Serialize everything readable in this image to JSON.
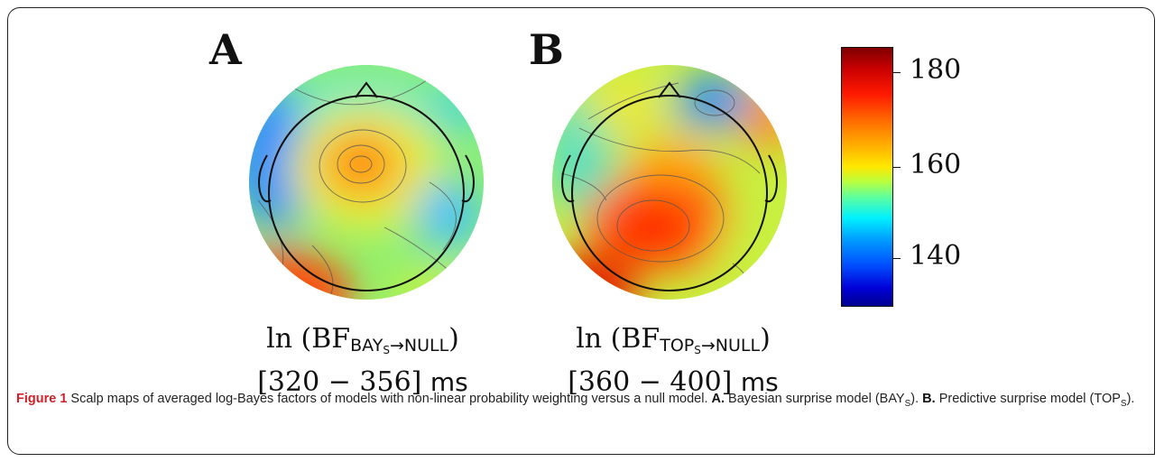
{
  "figure": {
    "panels": [
      {
        "letter": "A",
        "formula_prefix": "ln (BF",
        "subscript": "BAY",
        "subsub": "S",
        "arrow_null": "→NULL",
        "formula_suffix": ")",
        "window": "[320 − 356]",
        "unit": "ms"
      },
      {
        "letter": "B",
        "formula_prefix": "ln (BF",
        "subscript": "TOP",
        "subsub": "S",
        "arrow_null": "→NULL",
        "formula_suffix": ")",
        "window": "[360 − 400]",
        "unit": "ms"
      }
    ],
    "colorbar": {
      "ticks": [
        "180",
        "160",
        "140"
      ],
      "colors": [
        "#7f0000",
        "#ff1a00",
        "#ffb000",
        "#ffe800",
        "#5cffa0",
        "#00f0ff",
        "#0050ff",
        "#00008f"
      ]
    }
  },
  "caption": {
    "figure_label": "Figure 1",
    "text1": " Scalp maps of averaged log-Bayes factors of models with non-linear probability weighting versus a null model. ",
    "a_label": "A.",
    "text2": " Bayesian surprise model (BAY",
    "sub_a": "S",
    "text3": "). ",
    "b_label": "B.",
    "text4": " Predictive surprise model (TOP",
    "sub_b": "S",
    "text5": ")."
  }
}
